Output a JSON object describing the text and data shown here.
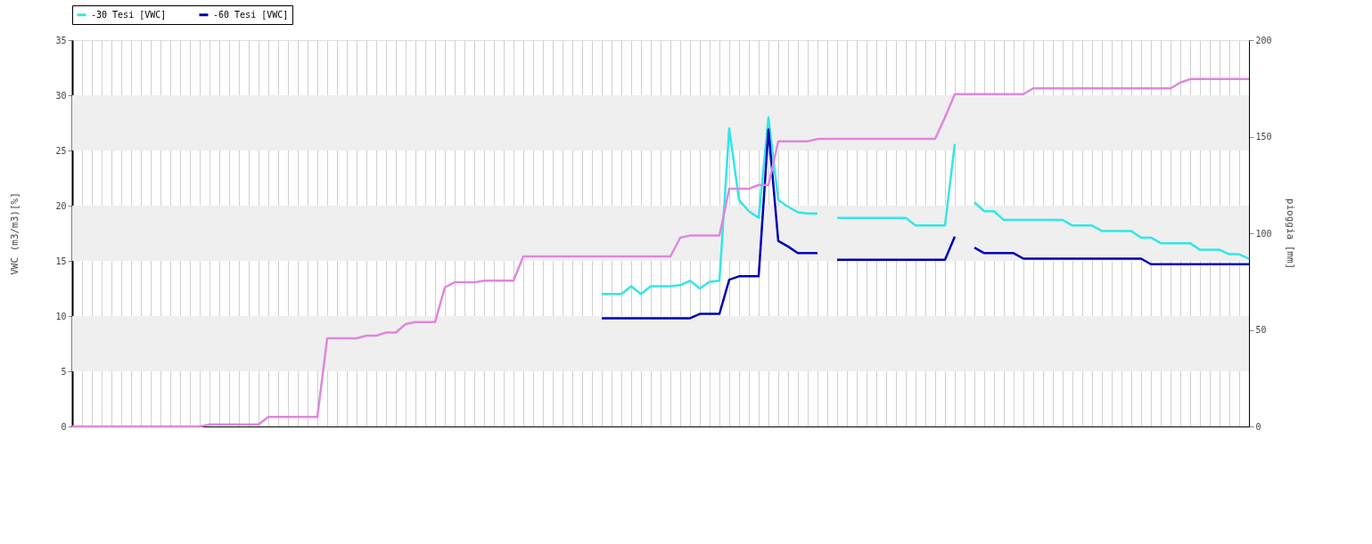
{
  "chart_data": {
    "type": "line",
    "ylabel": "VWC (m3/m3)[%]",
    "y2label": "pioggia [mm]",
    "categories": [
      null,
      null,
      null,
      null,
      null,
      null,
      null,
      null,
      null,
      null,
      null,
      null,
      null,
      null,
      null,
      null,
      null,
      null,
      null,
      null,
      null,
      null,
      null,
      null,
      null,
      null,
      null,
      null,
      null,
      null,
      null,
      null,
      null,
      null,
      null,
      null,
      null,
      null,
      null,
      null,
      null,
      null,
      null,
      null,
      null,
      null,
      null,
      null,
      null,
      null,
      null,
      null,
      null,
      null,
      null,
      null,
      null,
      null,
      null,
      null,
      null,
      null,
      null,
      null,
      null,
      null,
      null,
      null,
      null,
      null,
      null,
      null,
      null,
      null,
      null,
      null,
      null,
      null,
      null,
      null,
      null,
      null,
      null,
      null,
      null,
      null,
      null,
      null,
      null,
      null,
      null,
      null,
      null,
      null,
      null,
      null,
      null,
      null,
      null,
      null,
      null,
      null,
      null,
      null,
      null,
      null,
      null,
      null,
      null,
      null,
      null,
      null,
      null,
      null,
      null,
      null,
      null,
      null,
      null,
      null,
      null
    ],
    "ylim": [
      0,
      35
    ],
    "yticks": [
      0,
      5,
      10,
      15,
      20,
      25,
      30,
      35
    ],
    "y2lim": [
      0,
      200
    ],
    "y2ticks": [
      0,
      50,
      100,
      150,
      200
    ],
    "grid": "x",
    "legend": "top",
    "bands": [
      {
        "axis": "y",
        "from": 5,
        "to": 10,
        "color": "#efefef"
      },
      {
        "axis": "y",
        "from": 15,
        "to": 20,
        "color": "#efefef"
      },
      {
        "axis": "y",
        "from": 25,
        "to": 30,
        "color": "#efefef"
      }
    ],
    "series": [
      {
        "axis": "y2",
        "color": "#dd88dd",
        "values": [
          0,
          0,
          0,
          0,
          0,
          0,
          0,
          0,
          0,
          0,
          0,
          0,
          0,
          0,
          1,
          1,
          1,
          1,
          1,
          1,
          5,
          5,
          5,
          5,
          5,
          5,
          45.6,
          45.6,
          45.6,
          45.6,
          47,
          47,
          48.6,
          48.6,
          53,
          54,
          54,
          54,
          72,
          74.6,
          74.6,
          74.6,
          75.5,
          75.5,
          75.5,
          75.5,
          88,
          88,
          88,
          88,
          88,
          88,
          88,
          88,
          88,
          88,
          88,
          88,
          88,
          88,
          88,
          88,
          97.7,
          98.8,
          98.8,
          98.8,
          98.8,
          123,
          123,
          123,
          125,
          125,
          147.6,
          147.6,
          147.6,
          147.6,
          148.8,
          148.8,
          148.8,
          148.8,
          148.8,
          148.8,
          148.8,
          148.8,
          148.8,
          148.8,
          148.8,
          148.8,
          148.8,
          160,
          172,
          172,
          172,
          172,
          172,
          172,
          172,
          172,
          175,
          175,
          175,
          175,
          175,
          175,
          175,
          175,
          175,
          175,
          175,
          175,
          175,
          175,
          175,
          178,
          179.8,
          179.8,
          179.8,
          179.8,
          179.8,
          179.8,
          179.8
        ]
      },
      {
        "name": "-30 Tesi [VWC]",
        "color": "#33e6e6",
        "values": [
          null,
          null,
          null,
          null,
          null,
          null,
          null,
          null,
          null,
          null,
          null,
          null,
          null,
          null,
          null,
          null,
          null,
          null,
          null,
          null,
          null,
          null,
          null,
          null,
          null,
          null,
          null,
          null,
          null,
          null,
          null,
          null,
          null,
          null,
          null,
          null,
          null,
          null,
          null,
          null,
          null,
          null,
          null,
          null,
          null,
          null,
          null,
          null,
          null,
          null,
          null,
          null,
          null,
          null,
          12.0,
          12.0,
          12.0,
          12.7,
          12.0,
          12.7,
          12.7,
          12.7,
          12.8,
          13.2,
          12.5,
          13.1,
          13.2,
          27.0,
          20.5,
          19.5,
          18.9,
          28.0,
          20.5,
          19.9,
          19.4,
          19.3,
          19.3,
          null,
          18.9,
          18.9,
          18.9,
          18.9,
          18.9,
          18.9,
          18.9,
          18.9,
          18.2,
          18.2,
          18.2,
          18.2,
          25.6,
          null,
          20.3,
          19.5,
          19.5,
          18.7,
          18.7,
          18.7,
          18.7,
          18.7,
          18.7,
          18.7,
          18.2,
          18.2,
          18.2,
          17.7,
          17.7,
          17.7,
          17.7,
          17.1,
          17.1,
          16.6,
          16.6,
          16.6,
          16.6,
          16.0,
          16.0,
          16.0,
          15.6,
          15.6,
          15.2
        ]
      },
      {
        "name": "-60 Tesi [VWC]",
        "color": "#0000b4",
        "values": [
          null,
          null,
          null,
          null,
          null,
          null,
          null,
          null,
          null,
          null,
          null,
          null,
          null,
          null,
          null,
          null,
          null,
          null,
          null,
          null,
          null,
          null,
          null,
          null,
          null,
          null,
          null,
          null,
          null,
          null,
          null,
          null,
          null,
          null,
          null,
          null,
          null,
          null,
          null,
          null,
          null,
          null,
          null,
          null,
          null,
          null,
          null,
          null,
          null,
          null,
          null,
          null,
          null,
          null,
          9.8,
          9.8,
          9.8,
          9.8,
          9.8,
          9.8,
          9.8,
          9.8,
          9.8,
          9.8,
          10.2,
          10.2,
          10.2,
          13.3,
          13.6,
          13.6,
          13.6,
          26.9,
          16.8,
          16.3,
          15.7,
          15.7,
          15.7,
          null,
          15.1,
          15.1,
          15.1,
          15.1,
          15.1,
          15.1,
          15.1,
          15.1,
          15.1,
          15.1,
          15.1,
          15.1,
          17.2,
          null,
          16.2,
          15.7,
          15.7,
          15.7,
          15.7,
          15.2,
          15.2,
          15.2,
          15.2,
          15.2,
          15.2,
          15.2,
          15.2,
          15.2,
          15.2,
          15.2,
          15.2,
          15.2,
          14.7,
          14.7,
          14.7,
          14.7,
          14.7,
          14.7,
          14.7,
          14.7,
          14.7,
          14.7,
          14.7
        ]
      }
    ]
  }
}
